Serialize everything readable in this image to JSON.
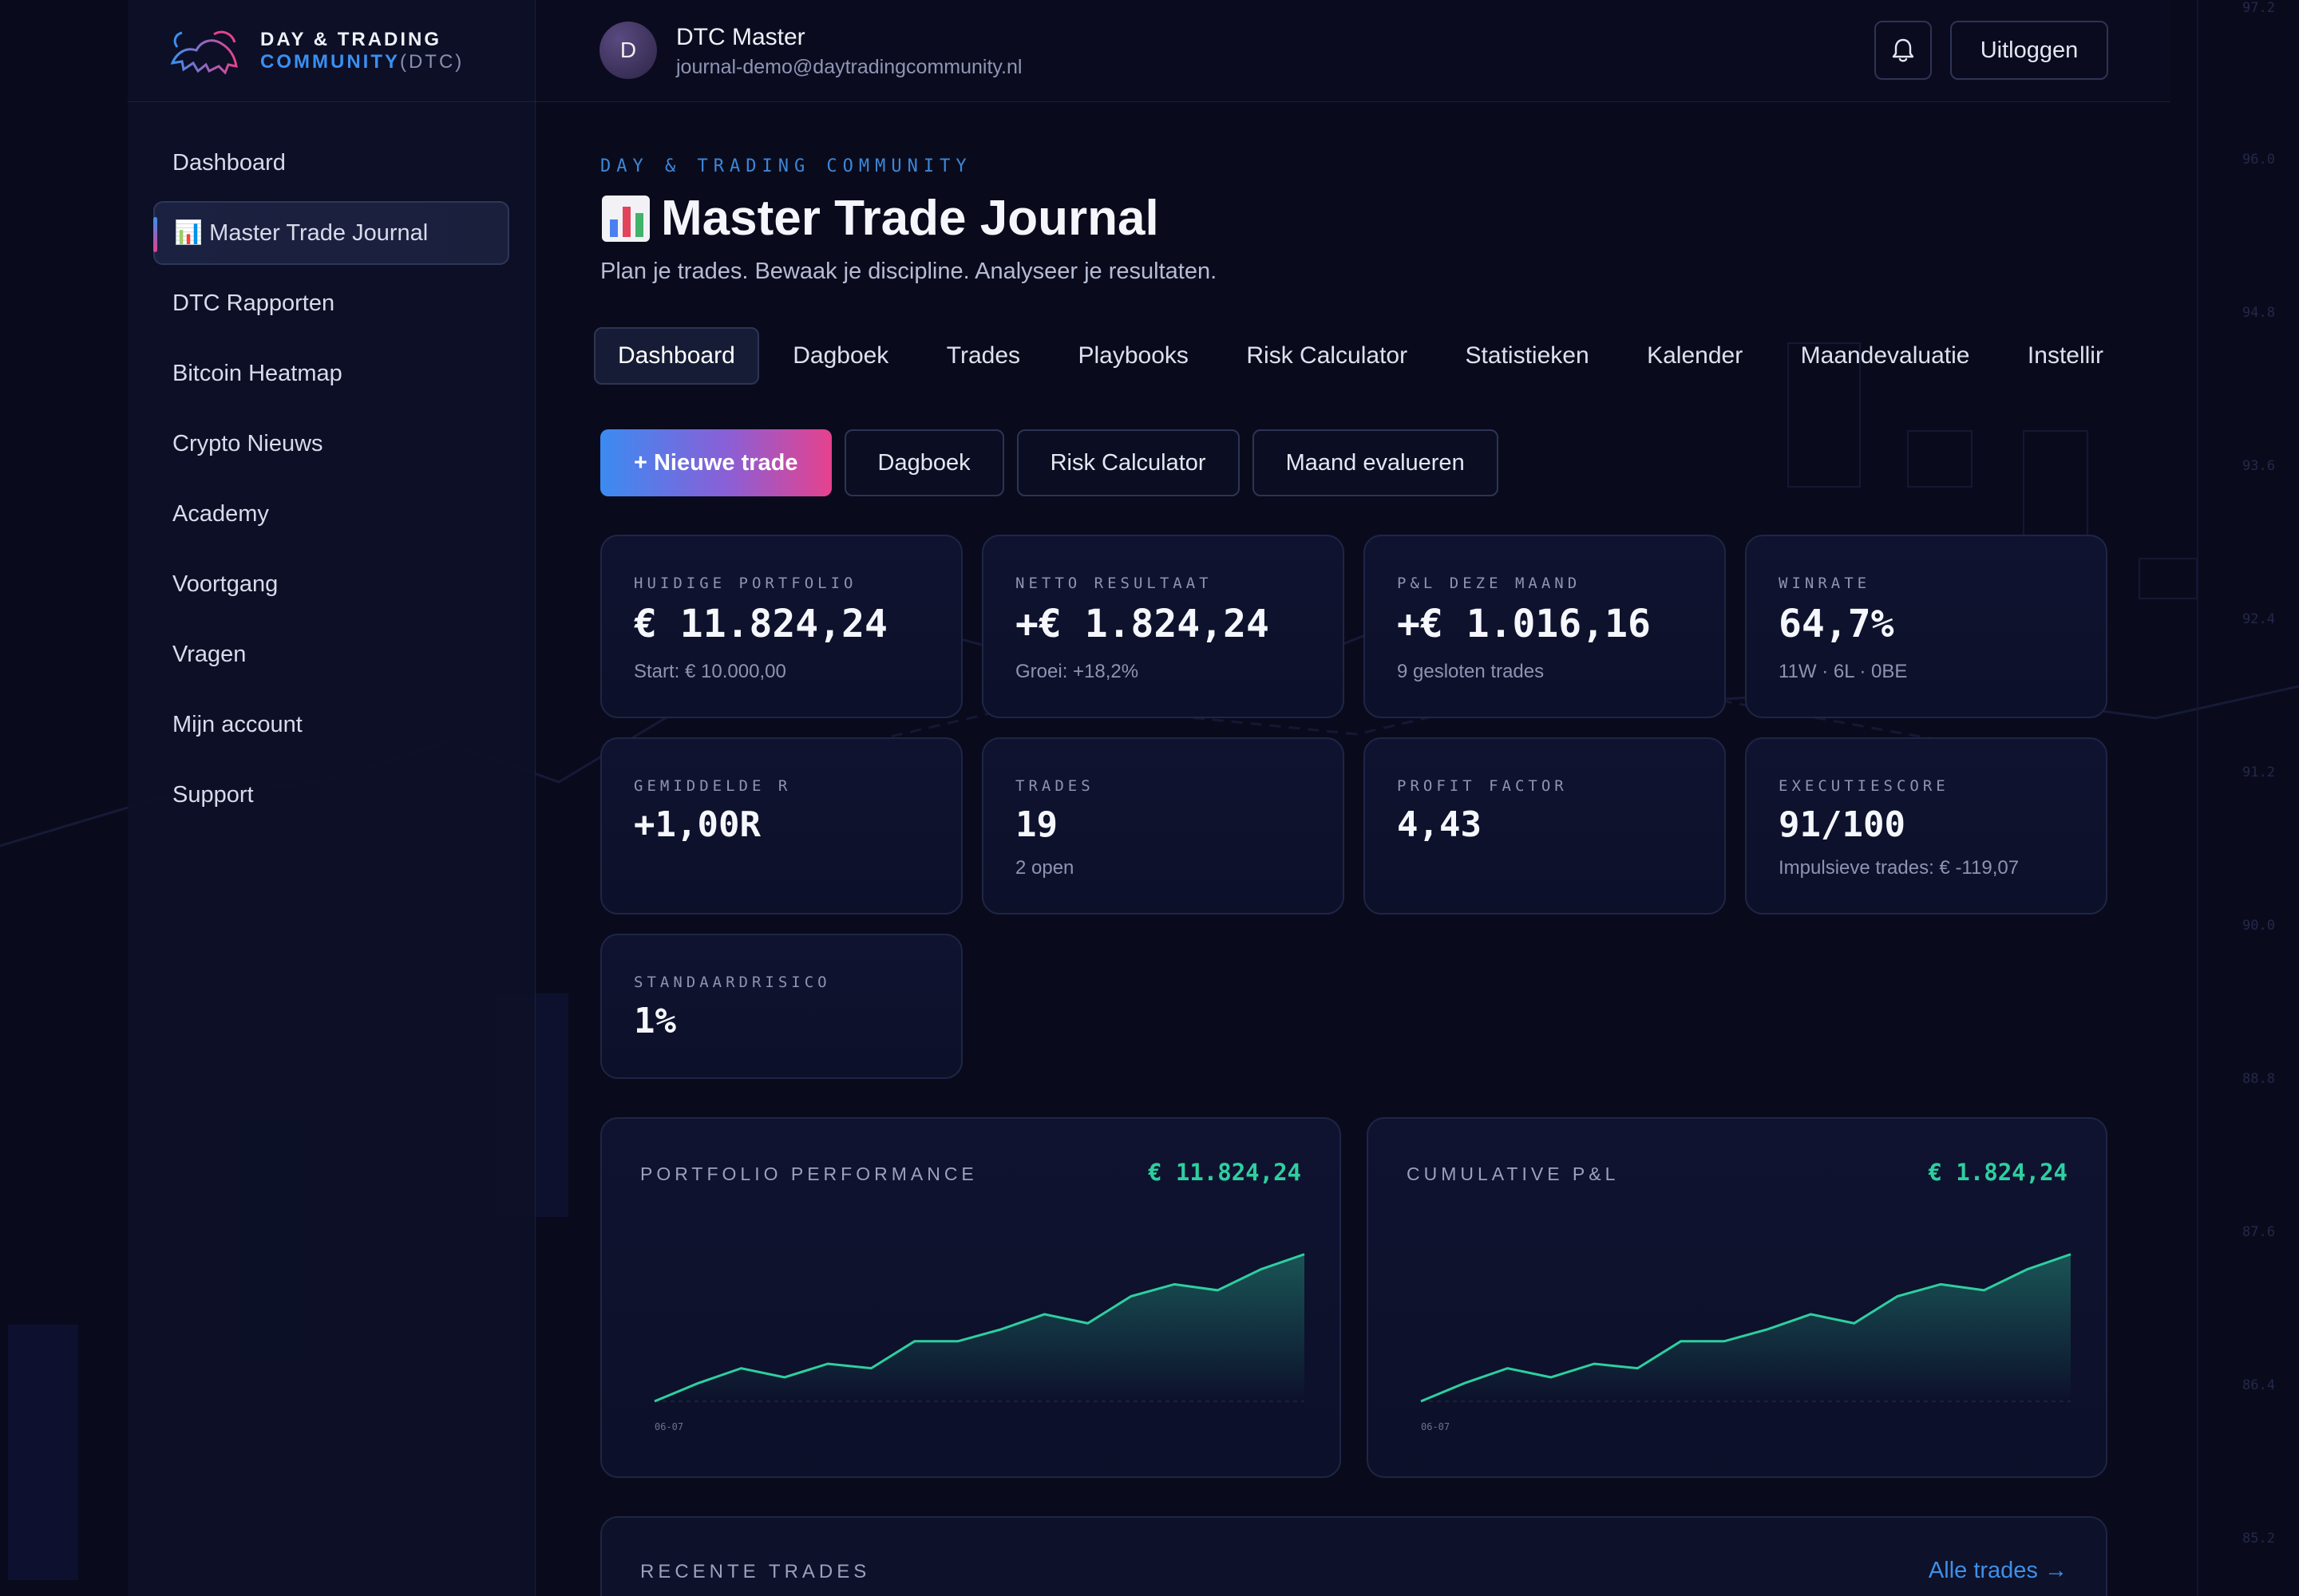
{
  "brand": {
    "line1": "DAY & TRADING",
    "line2_a": "COMMUNITY",
    "line2_b": "(DTC)"
  },
  "sidebar": {
    "items": [
      {
        "label": "Dashboard"
      },
      {
        "label": "📊 Master Trade Journal",
        "active": true
      },
      {
        "label": "DTC Rapporten"
      },
      {
        "label": "Bitcoin Heatmap"
      },
      {
        "label": "Crypto Nieuws"
      },
      {
        "label": "Academy"
      },
      {
        "label": "Voortgang"
      },
      {
        "label": "Vragen"
      },
      {
        "label": "Mijn account"
      },
      {
        "label": "Support"
      }
    ]
  },
  "topbar": {
    "avatar_initial": "D",
    "user_name": "DTC Master",
    "user_email": "journal-demo@daytradingcommunity.nl",
    "bell_icon": "bell-icon",
    "logout_label": "Uitloggen"
  },
  "header": {
    "eyebrow": "DAY & TRADING COMMUNITY",
    "title": "Master Trade Journal",
    "subtitle": "Plan je trades. Bewaak je discipline. Analyseer je resultaten."
  },
  "tabs": [
    {
      "label": "Dashboard",
      "active": true
    },
    {
      "label": "Dagboek"
    },
    {
      "label": "Trades"
    },
    {
      "label": "Playbooks"
    },
    {
      "label": "Risk Calculator"
    },
    {
      "label": "Statistieken"
    },
    {
      "label": "Kalender"
    },
    {
      "label": "Maandevaluatie"
    },
    {
      "label": "Instellir"
    }
  ],
  "actions": {
    "new_trade": "+ Nieuwe trade",
    "journal": "Dagboek",
    "risk": "Risk Calculator",
    "evaluate": "Maand evalueren"
  },
  "stats": [
    {
      "label": "HUIDIGE PORTFOLIO",
      "value": "€ 11.824,24",
      "sub": "Start: € 10.000,00"
    },
    {
      "label": "NETTO RESULTAAT",
      "value": "+€ 1.824,24",
      "sub": "Groei: +18,2%"
    },
    {
      "label": "P&L DEZE MAAND",
      "value": "+€ 1.016,16",
      "sub": "9 gesloten trades"
    },
    {
      "label": "WINRATE",
      "value": "64,7%",
      "sub": "11W · 6L · 0BE"
    },
    {
      "label": "GEMIDDELDE R",
      "value": "+1,00R",
      "sub": ""
    },
    {
      "label": "TRADES",
      "value": "19",
      "sub": "2 open"
    },
    {
      "label": "PROFIT FACTOR",
      "value": "4,43",
      "sub": ""
    },
    {
      "label": "EXECUTIESCORE",
      "value": "91/100",
      "sub": "Impulsieve trades: € -119,07"
    },
    {
      "label": "STANDAARDRISICO",
      "value": "1%",
      "sub": ""
    }
  ],
  "charts": {
    "portfolio": {
      "title": "PORTFOLIO PERFORMANCE",
      "value": "€ 11.824,24",
      "x_label": "06-07"
    },
    "cumulative": {
      "title": "CUMULATIVE P&L",
      "value": "€ 1.824,24",
      "x_label": "06-07"
    }
  },
  "chart_data": {
    "type": "area",
    "line_color": "#2ecfa0",
    "series": [
      {
        "values": [
          0,
          0.12,
          0.22,
          0.16,
          0.25,
          0.22,
          0.4,
          0.4,
          0.48,
          0.58,
          0.52,
          0.7,
          0.78,
          0.74,
          0.88,
          0.98
        ]
      }
    ],
    "xlabel_first": "06-07"
  },
  "recent": {
    "title": "RECENTE TRADES",
    "link": "Alle trades →"
  },
  "axis_ticks": [
    "97.2",
    "96.0",
    "94.8",
    "93.6",
    "92.4",
    "91.2",
    "90.0",
    "88.8",
    "87.6",
    "86.4",
    "85.2"
  ],
  "colors": {
    "accent_blue": "#3a8ff0",
    "accent_pink": "#e6428d",
    "positive": "#2ecfa0"
  }
}
